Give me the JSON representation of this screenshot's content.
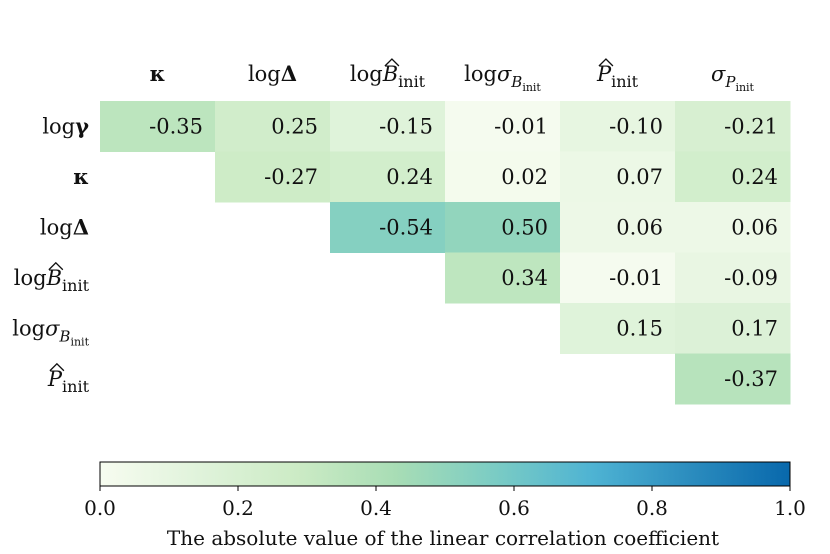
{
  "chart_data": {
    "type": "heatmap",
    "column_labels": [
      {
        "id": "kappa",
        "prefix": "",
        "symbol": "κ",
        "hat": false,
        "sub": "",
        "subsub": "",
        "bold": true
      },
      {
        "id": "logDelta",
        "prefix": "log",
        "symbol": "Δ",
        "hat": false,
        "sub": "",
        "subsub": "",
        "bold": true
      },
      {
        "id": "logBinit",
        "prefix": "log",
        "symbol": "B",
        "hat": true,
        "sub": "init",
        "subsub": "",
        "bold": false
      },
      {
        "id": "logSigmaB",
        "prefix": "log",
        "symbol": "σ",
        "hat": false,
        "sub": "B",
        "subsub": "init",
        "bold": false
      },
      {
        "id": "Pinit",
        "prefix": "",
        "symbol": "P",
        "hat": true,
        "sub": "init",
        "subsub": "",
        "bold": false
      },
      {
        "id": "sigmaP",
        "prefix": "",
        "symbol": "σ",
        "hat": false,
        "sub": "P",
        "subsub": "init",
        "bold": false
      }
    ],
    "row_labels": [
      {
        "id": "logGamma",
        "prefix": "log",
        "symbol": "γ",
        "hat": false,
        "sub": "",
        "subsub": "",
        "bold": true
      },
      {
        "id": "kappa",
        "prefix": "",
        "symbol": "κ",
        "hat": false,
        "sub": "",
        "subsub": "",
        "bold": true
      },
      {
        "id": "logDelta",
        "prefix": "log",
        "symbol": "Δ",
        "hat": false,
        "sub": "",
        "subsub": "",
        "bold": true
      },
      {
        "id": "logBinit",
        "prefix": "log",
        "symbol": "B",
        "hat": true,
        "sub": "init",
        "subsub": "",
        "bold": false
      },
      {
        "id": "logSigmaB",
        "prefix": "log",
        "symbol": "σ",
        "hat": false,
        "sub": "B",
        "subsub": "init",
        "bold": false
      },
      {
        "id": "Pinit",
        "prefix": "",
        "symbol": "P",
        "hat": true,
        "sub": "init",
        "subsub": "",
        "bold": false
      }
    ],
    "values": [
      [
        "-0.35",
        "0.25",
        "-0.15",
        "-0.01",
        "-0.10",
        "-0.21"
      ],
      [
        null,
        "-0.27",
        "0.24",
        "0.02",
        "0.07",
        "0.24"
      ],
      [
        null,
        null,
        "-0.54",
        "0.50",
        "0.06",
        "0.06"
      ],
      [
        null,
        null,
        null,
        "0.34",
        "-0.01",
        "-0.09"
      ],
      [
        null,
        null,
        null,
        null,
        "0.15",
        "0.17"
      ],
      [
        null,
        null,
        null,
        null,
        null,
        "-0.37"
      ]
    ],
    "color_scale": {
      "min": 0.0,
      "max": 1.0,
      "ticks": [
        "0.0",
        "0.2",
        "0.4",
        "0.6",
        "0.8",
        "1.0"
      ],
      "label": "The absolute value of the linear correlation coefficient",
      "colormap": "GnBu",
      "stops": [
        "#f7fcf0",
        "#e0f3db",
        "#ccebc5",
        "#a8ddb5",
        "#7bccc4",
        "#4eb3d3",
        "#2b8cbe",
        "#0868ac"
      ]
    }
  }
}
